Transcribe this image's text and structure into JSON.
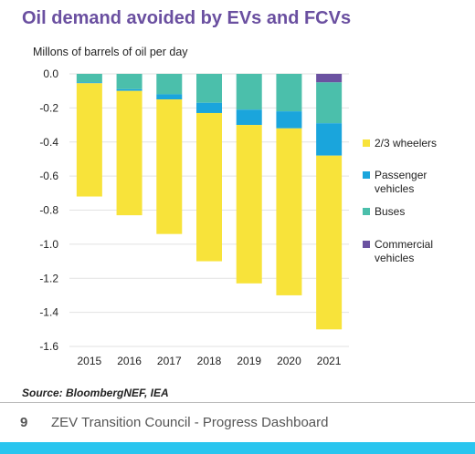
{
  "page": {
    "source_text": "Source: BloombergNEF, IEA",
    "page_number": "9",
    "footer_text": "ZEV Transition Council - Progress Dashboard",
    "accent_color": "#29c5ef"
  },
  "chart_data": {
    "type": "bar",
    "stacked": true,
    "title": "Oil demand avoided by EVs and FCVs",
    "ylabel": "Millons of barrels of oil per day",
    "xlabel": "",
    "categories": [
      "2015",
      "2016",
      "2017",
      "2018",
      "2019",
      "2020",
      "2021"
    ],
    "ylim": [
      -1.6,
      0.0
    ],
    "yticks": [
      "0.0",
      "-0.2",
      "-0.4",
      "-0.6",
      "-0.8",
      "-1.0",
      "-1.2",
      "-1.4",
      "-1.6"
    ],
    "ytick_values": [
      0,
      -0.2,
      -0.4,
      -0.6,
      -0.8,
      -1.0,
      -1.2,
      -1.4,
      -1.6
    ],
    "grid": true,
    "legend_position": "right",
    "series": [
      {
        "name": "Commercial vehicles",
        "color": "#6b52a1",
        "values": [
          0,
          0,
          0,
          0,
          0,
          0,
          -0.05
        ]
      },
      {
        "name": "Buses",
        "color": "#4bbfab",
        "values": [
          -0.05,
          -0.09,
          -0.12,
          -0.17,
          -0.21,
          -0.22,
          -0.24
        ]
      },
      {
        "name": "Passenger vehicles",
        "color": "#1aa5dc",
        "values": [
          -0.005,
          -0.01,
          -0.03,
          -0.06,
          -0.09,
          -0.1,
          -0.19
        ]
      },
      {
        "name": "2/3 wheelers",
        "color": "#f8e33a",
        "values": [
          -0.665,
          -0.73,
          -0.79,
          -0.87,
          -0.93,
          -0.98,
          -1.02
        ]
      }
    ],
    "legend": [
      {
        "name": "2/3 wheelers",
        "color": "#f8e33a"
      },
      {
        "name": "Passenger vehicles",
        "color": "#1aa5dc"
      },
      {
        "name": "Buses",
        "color": "#4bbfab"
      },
      {
        "name": "Commercial vehicles",
        "color": "#6b52a1"
      }
    ]
  }
}
